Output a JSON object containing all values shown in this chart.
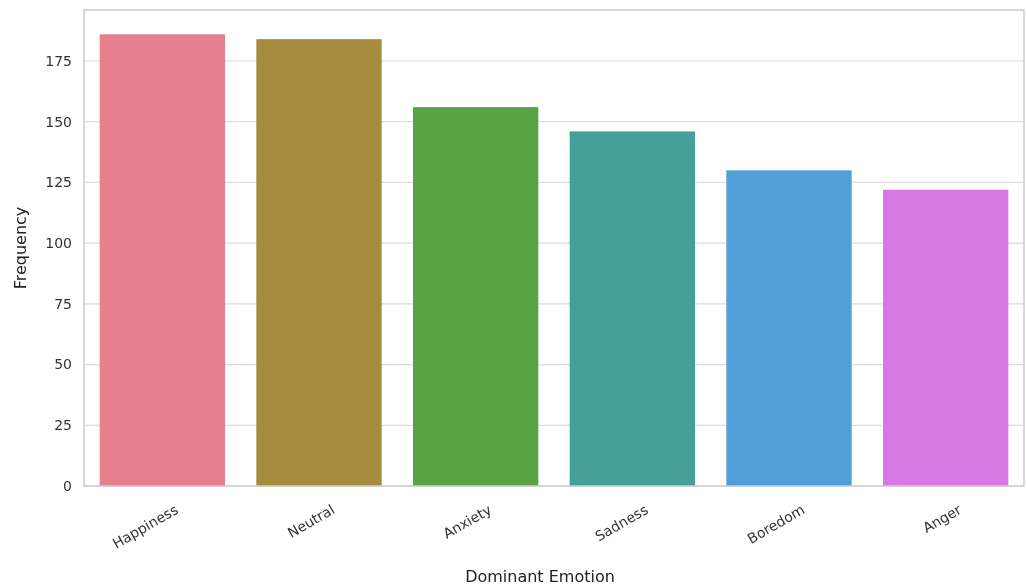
{
  "chart_data": {
    "type": "bar",
    "xlabel": "Dominant Emotion",
    "ylabel": "Frequency",
    "categories": [
      "Happiness",
      "Neutral",
      "Anxiety",
      "Sadness",
      "Boredom",
      "Anger"
    ],
    "values": [
      186,
      184,
      156,
      146,
      130,
      122
    ],
    "colors": [
      "#e6808f",
      "#a68c3f",
      "#58a444",
      "#469f99",
      "#519fd6",
      "#d878e4"
    ],
    "ylim": [
      0,
      196
    ],
    "yticks": [
      0,
      25,
      50,
      75,
      100,
      125,
      150,
      175
    ],
    "grid": "y"
  }
}
